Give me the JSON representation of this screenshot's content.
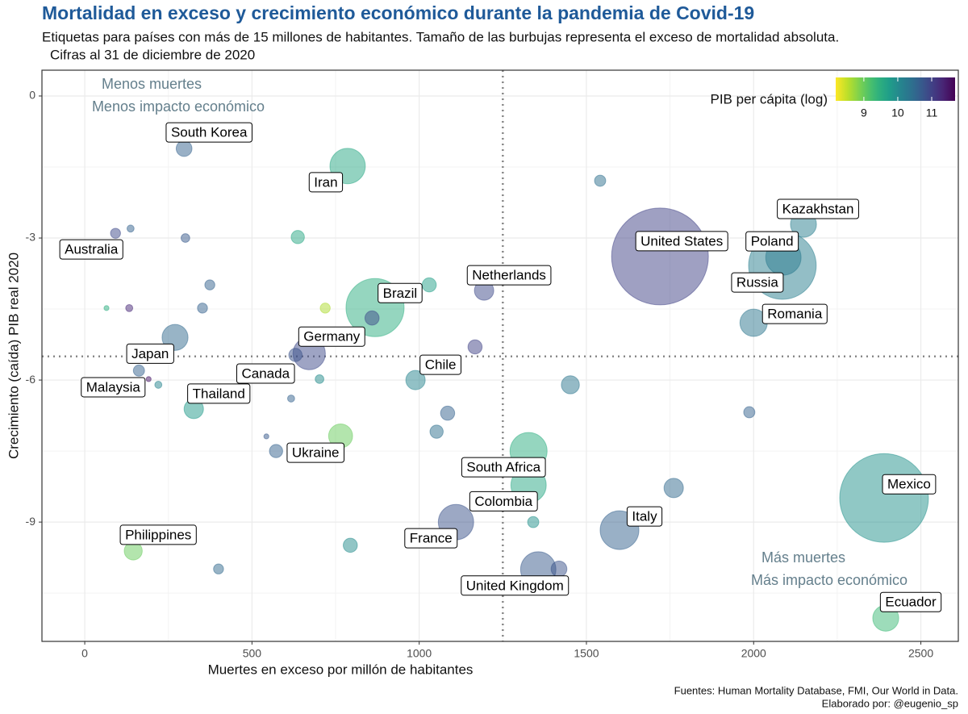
{
  "chart_data": {
    "type": "bubble",
    "title": "Mortalidad en exceso y crecimiento económico durante la pandemia de Covid-19",
    "subtitle": "Etiquetas para países con más de 15 millones de habitantes. Tamaño de las burbujas representa el exceso de mortalidad absoluta.",
    "subtitle2": "Cifras al 31 de diciembre de 2020",
    "x_label": "Muertes en exceso por millón de habitantes",
    "y_label": "Crecimiento (caída) PIB real 2020",
    "caption": "Fuentes: Human Mortality Database, FMI, Our World in Data.",
    "caption2": "Elaborado por: @eugenio_sp",
    "annotations": [
      "Menos muertes",
      "Menos impacto económico",
      "Más muertes",
      "Más impacto económico"
    ],
    "xlim": [
      -128,
      2612
    ],
    "ylim": [
      -11.52,
      0.545
    ],
    "xticks": [
      0,
      500,
      1000,
      1500,
      2000,
      2500
    ],
    "yticks": [
      0,
      -3,
      -6,
      -9
    ],
    "grid": true,
    "reference_lines": {
      "x": 1250,
      "y": -5.5
    },
    "colorbar": {
      "title": "PIB per cápita (log)",
      "colormap": "viridis",
      "reverse": true,
      "clim": [
        8.17,
        11.69
      ],
      "ticks": [
        9,
        10,
        11
      ]
    },
    "opacity": 0.5,
    "labels": [
      "South Korea",
      "Iran",
      "Australia",
      "Netherlands",
      "Brazil",
      "United States",
      "Poland",
      "Russia",
      "Kazakhstan",
      "Romania",
      "Germany",
      "Canada",
      "Japan",
      "Malaysia",
      "Thailand",
      "Chile",
      "Ukraine",
      "South Africa",
      "Colombia",
      "France",
      "United Kingdom",
      "Italy",
      "Philippines",
      "Mexico",
      "Ecuador",
      null,
      null,
      null,
      null,
      null,
      null,
      null,
      null,
      null,
      null,
      null,
      null,
      null,
      null,
      null,
      null,
      null,
      null,
      null,
      null,
      null,
      null,
      null,
      null,
      null,
      null,
      null
    ],
    "x": [
      297,
      786,
      92,
      1194,
      868,
      1720,
      2089,
      2086,
      2149,
      2000,
      671,
      630,
      162,
      220,
      326,
      989,
      572,
      1327,
      1327,
      1110,
      1356,
      1599,
      145,
      2390,
      2395,
      1541,
      137,
      301,
      637,
      374,
      1030,
      65,
      133,
      352,
      719,
      859,
      270,
      1167,
      617,
      702,
      1452,
      1085,
      1987,
      1052,
      543,
      765,
      1761,
      1341,
      794,
      400,
      1418,
      191
    ],
    "y": [
      -1.11,
      -1.48,
      -2.9,
      -4.11,
      -4.47,
      -3.39,
      -3.41,
      -3.58,
      -2.71,
      -4.79,
      -5.44,
      -5.47,
      -5.8,
      -6.1,
      -6.61,
      -6.0,
      -7.5,
      -7.5,
      -8.22,
      -9.0,
      -10.0,
      -9.17,
      -9.61,
      -8.49,
      -11.03,
      -1.79,
      -2.8,
      -3.0,
      -2.98,
      -3.99,
      -3.99,
      -4.48,
      -4.48,
      -4.48,
      -4.48,
      -4.69,
      -5.1,
      -5.3,
      -6.39,
      -5.98,
      -6.1,
      -6.7,
      -6.68,
      -7.09,
      -7.19,
      -7.18,
      -8.28,
      -9.0,
      -9.49,
      -9.99,
      -9.99,
      -5.98
    ],
    "sizes": [
      10,
      50,
      4,
      15,
      135,
      375,
      50,
      183,
      27,
      30,
      42,
      7,
      5,
      2,
      15,
      15,
      7,
      55,
      50,
      50,
      50,
      60,
      13,
      315,
      27,
      5,
      2,
      3,
      7,
      4,
      8,
      1,
      2,
      4,
      4,
      8,
      27,
      8,
      2,
      3,
      13,
      8,
      5,
      7,
      1,
      23,
      15,
      5,
      8,
      4,
      10,
      1
    ],
    "color_values": [
      10.6,
      9.6,
      10.9,
      10.9,
      9.5,
      11.0,
      10.3,
      10.2,
      10.2,
      10.3,
      10.9,
      10.8,
      10.6,
      10.1,
      9.8,
      10.1,
      10.6,
      9.5,
      9.6,
      10.8,
      10.7,
      10.6,
      9.0,
      9.9,
      9.3,
      10.4,
      10.6,
      10.7,
      9.6,
      10.6,
      9.7,
      9.5,
      11.3,
      10.6,
      8.6,
      10.9,
      10.5,
      11.0,
      10.6,
      10.0,
      10.3,
      10.6,
      10.6,
      10.4,
      10.7,
      9.0,
      10.5,
      9.9,
      10.0,
      10.5,
      10.8,
      11.5
    ]
  }
}
